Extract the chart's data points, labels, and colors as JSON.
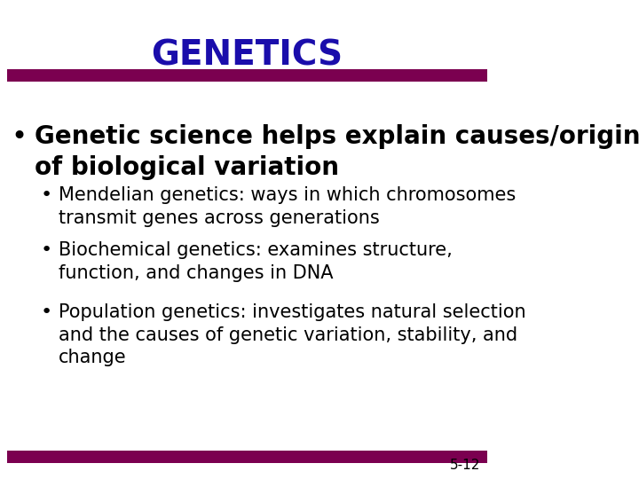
{
  "title": "GENETICS",
  "title_color": "#1a0dab",
  "title_fontsize": 28,
  "background_color": "#ffffff",
  "bar_color": "#7b0050",
  "bar_color2": "#8b0000",
  "bullet1_text": "Genetic science helps explain causes/origin\nof biological variation",
  "bullet1_fontsize": 20,
  "sub_bullets": [
    "Mendelian genetics: ways in which chromosomes\ntransmit genes across generations",
    "Biochemical genetics: examines structure,\nfunction, and changes in DNA",
    "Population genetics: investigates natural selection\nand the causes of genetic variation, stability, and\nchange"
  ],
  "sub_bullet_fontsize": 15,
  "bullet_color": "#000000",
  "page_num": "5-12",
  "page_num_fontsize": 11
}
